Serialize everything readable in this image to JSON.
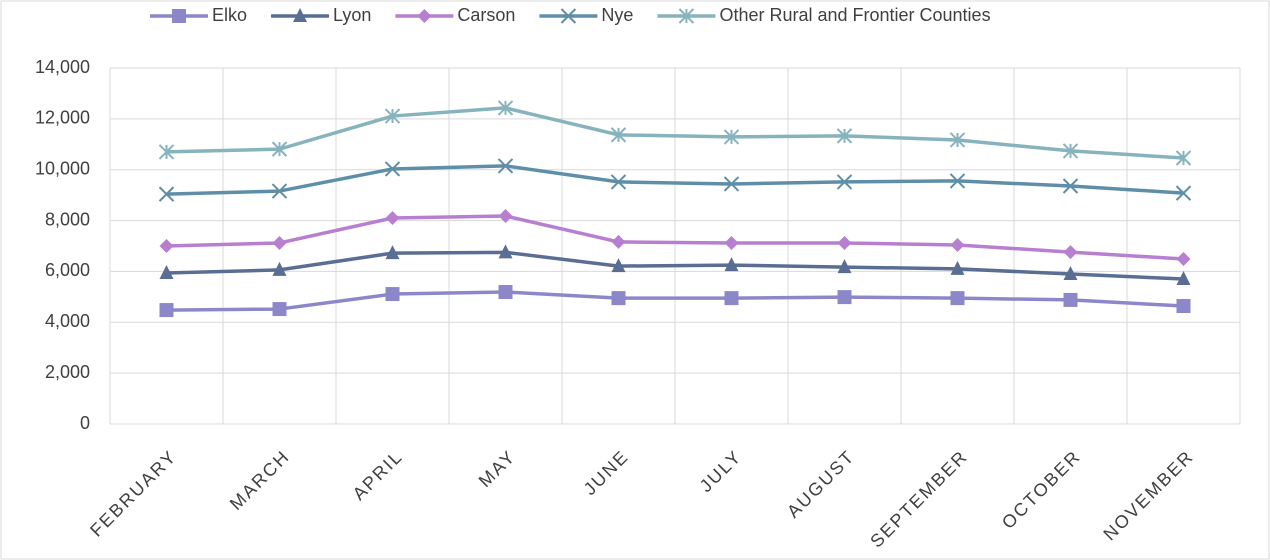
{
  "chart_data": {
    "type": "line",
    "categories": [
      "FEBRUARY",
      "MARCH",
      "APRIL",
      "MAY",
      "JUNE",
      "JULY",
      "AUGUST",
      "SEPTEMBER",
      "OCTOBER",
      "NOVEMBER"
    ],
    "series": [
      {
        "name": "Elko",
        "color": "#8c87c9",
        "marker": "square",
        "values": [
          4480,
          4520,
          5110,
          5190,
          4950,
          4950,
          4990,
          4950,
          4880,
          4640
        ]
      },
      {
        "name": "Lyon",
        "color": "#5a6e94",
        "marker": "triangle",
        "values": [
          5940,
          6060,
          6720,
          6750,
          6210,
          6250,
          6170,
          6100,
          5900,
          5700
        ]
      },
      {
        "name": "Carson",
        "color": "#b77fcf",
        "marker": "diamond",
        "values": [
          7000,
          7120,
          8100,
          8180,
          7160,
          7120,
          7120,
          7040,
          6760,
          6490
        ]
      },
      {
        "name": "Nye",
        "color": "#5f8fa8",
        "marker": "x",
        "values": [
          9040,
          9160,
          10030,
          10150,
          9520,
          9440,
          9520,
          9560,
          9360,
          9080
        ]
      },
      {
        "name": "Other Rural and Frontier Counties",
        "color": "#86b3bc",
        "marker": "star",
        "values": [
          10700,
          10810,
          12110,
          12430,
          11370,
          11290,
          11330,
          11170,
          10740,
          10460
        ]
      }
    ],
    "ylim": [
      0,
      14000
    ],
    "yticks": [
      0,
      {
        "value": 2000,
        "label": "2,000"
      },
      {
        "value": 4000,
        "label": "4,000"
      },
      {
        "value": 6000,
        "label": "6,000"
      },
      {
        "value": 8000,
        "label": "8,000"
      },
      {
        "value": 10000,
        "label": "10,000"
      },
      {
        "value": 12000,
        "label": "12,000"
      },
      {
        "value": 14000,
        "label": "14,000"
      }
    ],
    "grid": true,
    "legend": "top"
  }
}
